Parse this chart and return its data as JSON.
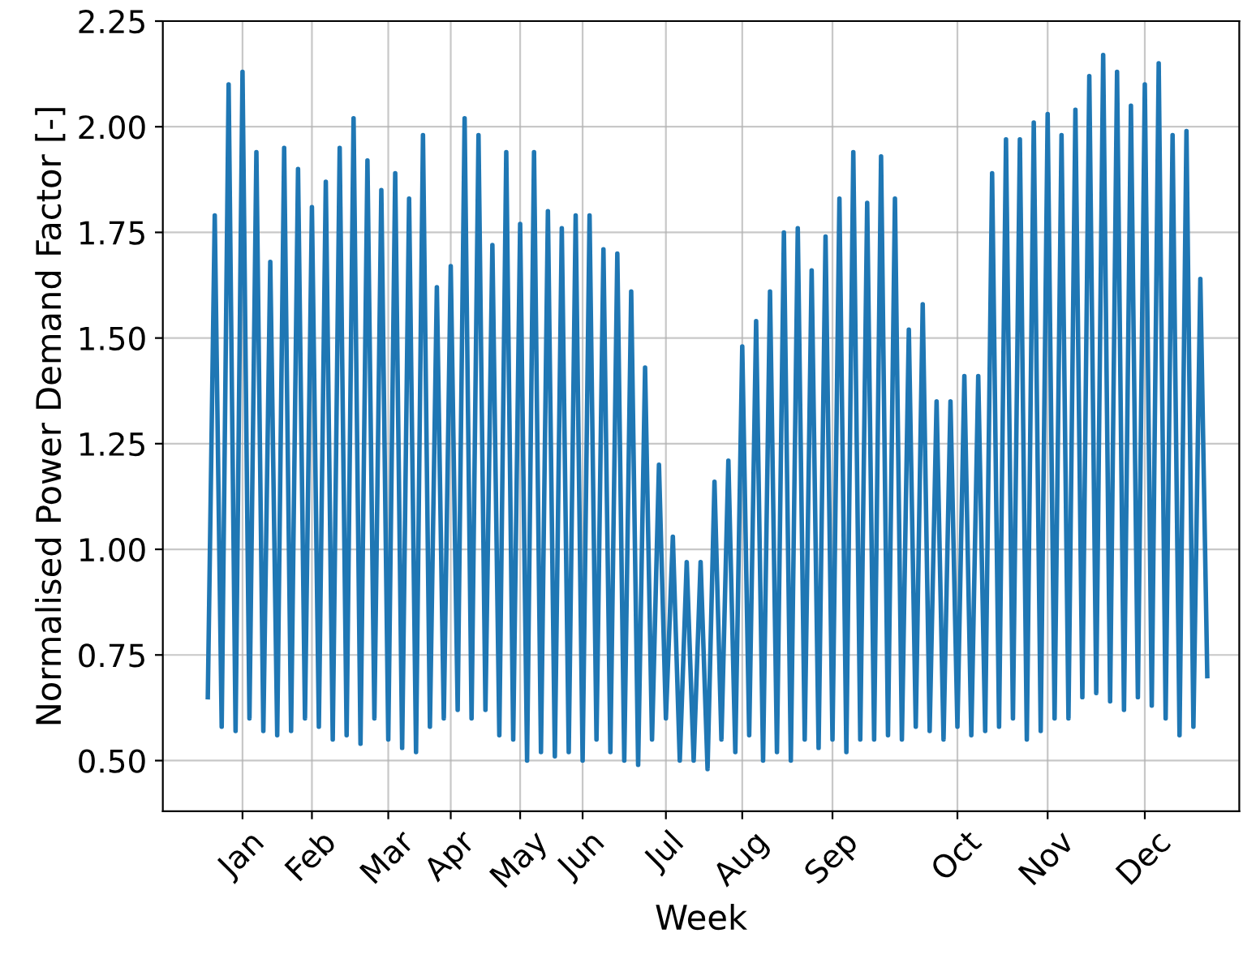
{
  "chart_data": {
    "type": "line",
    "xlabel": "Week",
    "ylabel": "Normalised Power Demand Factor [-]",
    "categories": [
      null,
      null,
      null,
      null,
      null,
      "Jan",
      null,
      null,
      null,
      null,
      null,
      null,
      null,
      null,
      null,
      "Feb",
      null,
      null,
      null,
      null,
      null,
      null,
      null,
      null,
      null,
      null,
      "Mar",
      null,
      null,
      null,
      null,
      null,
      null,
      null,
      null,
      "Apr",
      null,
      null,
      null,
      null,
      null,
      null,
      null,
      null,
      null,
      "May",
      null,
      null,
      null,
      null,
      null,
      null,
      null,
      null,
      "Jun",
      null,
      null,
      null,
      null,
      null,
      null,
      null,
      null,
      null,
      null,
      null,
      "Jul",
      null,
      null,
      null,
      null,
      null,
      null,
      null,
      null,
      null,
      null,
      "Aug",
      null,
      null,
      null,
      null,
      null,
      null,
      null,
      null,
      null,
      null,
      null,
      null,
      "Sep",
      null,
      null,
      null,
      null,
      null,
      null,
      null,
      null,
      null,
      null,
      null,
      null,
      null,
      null,
      null,
      null,
      null,
      "Oct",
      null,
      null,
      null,
      null,
      null,
      null,
      null,
      null,
      null,
      null,
      null,
      null,
      "Nov",
      null,
      null,
      null,
      null,
      null,
      null,
      null,
      null,
      null,
      null,
      null,
      null,
      null,
      "Dec",
      null,
      null,
      null,
      null,
      null,
      null,
      null,
      null,
      null
    ],
    "values": [
      0.65,
      1.79,
      0.58,
      2.1,
      0.57,
      2.13,
      0.6,
      1.94,
      0.57,
      1.68,
      0.56,
      1.95,
      0.57,
      1.9,
      0.6,
      1.81,
      0.58,
      1.87,
      0.55,
      1.95,
      0.56,
      2.02,
      0.54,
      1.92,
      0.6,
      1.85,
      0.55,
      1.89,
      0.53,
      1.83,
      0.52,
      1.98,
      0.58,
      1.62,
      0.6,
      1.67,
      0.62,
      2.02,
      0.6,
      1.98,
      0.62,
      1.72,
      0.56,
      1.94,
      0.55,
      1.77,
      0.5,
      1.94,
      0.52,
      1.8,
      0.51,
      1.76,
      0.52,
      1.79,
      0.5,
      1.79,
      0.55,
      1.71,
      0.52,
      1.7,
      0.5,
      1.61,
      0.49,
      1.43,
      0.55,
      1.2,
      0.6,
      1.03,
      0.5,
      0.97,
      0.5,
      0.97,
      0.48,
      1.16,
      0.55,
      1.21,
      0.52,
      1.48,
      0.56,
      1.54,
      0.5,
      1.61,
      0.52,
      1.75,
      0.5,
      1.76,
      0.55,
      1.66,
      0.53,
      1.74,
      0.55,
      1.83,
      0.52,
      1.94,
      0.55,
      1.82,
      0.55,
      1.93,
      0.56,
      1.83,
      0.55,
      1.52,
      0.58,
      1.58,
      0.57,
      1.35,
      0.55,
      1.35,
      0.58,
      1.41,
      0.56,
      1.41,
      0.57,
      1.89,
      0.58,
      1.97,
      0.6,
      1.97,
      0.55,
      2.01,
      0.57,
      2.03,
      0.6,
      1.98,
      0.6,
      2.04,
      0.65,
      2.12,
      0.66,
      2.17,
      0.64,
      2.13,
      0.62,
      2.05,
      0.65,
      2.1,
      0.63,
      2.15,
      0.6,
      1.98,
      0.56,
      1.99,
      0.58,
      1.64,
      0.7
    ],
    "color": "#1f77b4",
    "ylim": [
      0.38,
      2.25
    ],
    "yticks": [
      {
        "value": 0.5,
        "label": "0.50"
      },
      0.75,
      {
        "value": 1.0,
        "label": "1.00"
      },
      1.25,
      {
        "value": 1.5,
        "label": "1.50"
      },
      1.75,
      {
        "value": 2.0,
        "label": "2.00"
      },
      2.25
    ],
    "grid": true,
    "line_style": "solid"
  }
}
